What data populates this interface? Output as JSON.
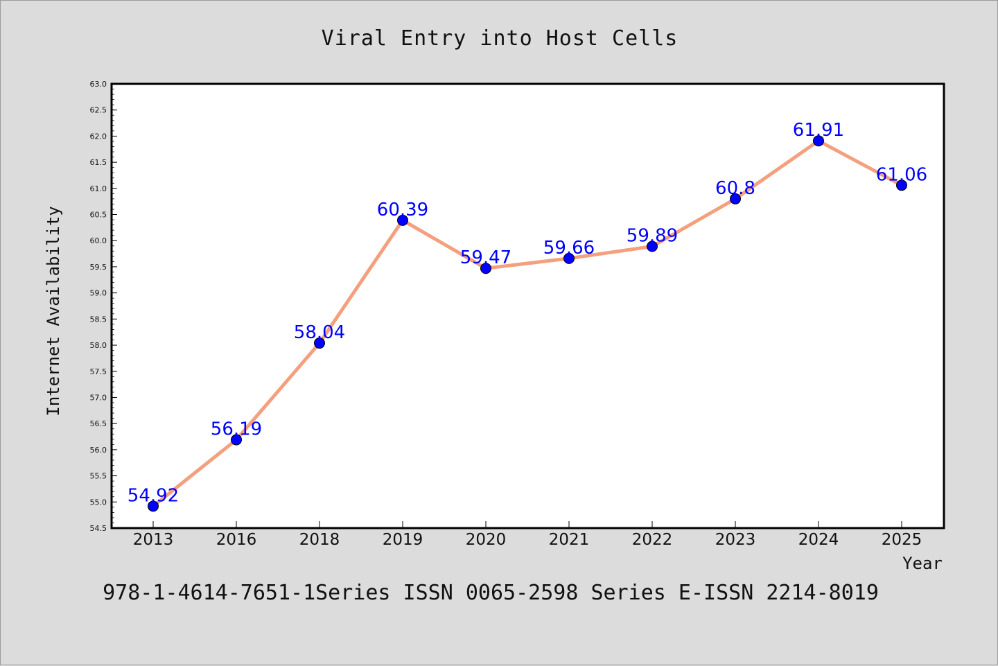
{
  "chart_data": {
    "type": "line",
    "title": "Viral Entry into Host Cells",
    "xlabel": "Year",
    "ylabel": "Internet Availability",
    "categories": [
      "2013",
      "2016",
      "2018",
      "2019",
      "2020",
      "2021",
      "2022",
      "2023",
      "2024",
      "2025"
    ],
    "values": [
      54.92,
      56.19,
      58.04,
      60.39,
      59.47,
      59.66,
      59.89,
      60.8,
      61.91,
      61.06
    ],
    "data_labels": [
      "54.92",
      "56.19",
      "58.04",
      "60.39",
      "59.47",
      "59.66",
      "59.89",
      "60.8",
      "61.91",
      "61.06"
    ],
    "ylim": [
      54.5,
      63.0
    ],
    "yticks": [
      "54.5",
      "55.0",
      "55.5",
      "56.0",
      "56.5",
      "57.0",
      "57.5",
      "58.0",
      "58.5",
      "59.0",
      "59.5",
      "60.0",
      "60.5",
      "61.0",
      "61.5",
      "62.0",
      "62.5",
      "63.0"
    ],
    "grid": false,
    "colors": {
      "line": "#f4a07e",
      "marker": "#0000ff",
      "label": "#0000ff",
      "background": "#dcdcdc",
      "plot_background": "#ffffff"
    }
  },
  "footer": "978-1-4614-7651-1Series ISSN 0065-2598 Series E-ISSN 2214-8019"
}
